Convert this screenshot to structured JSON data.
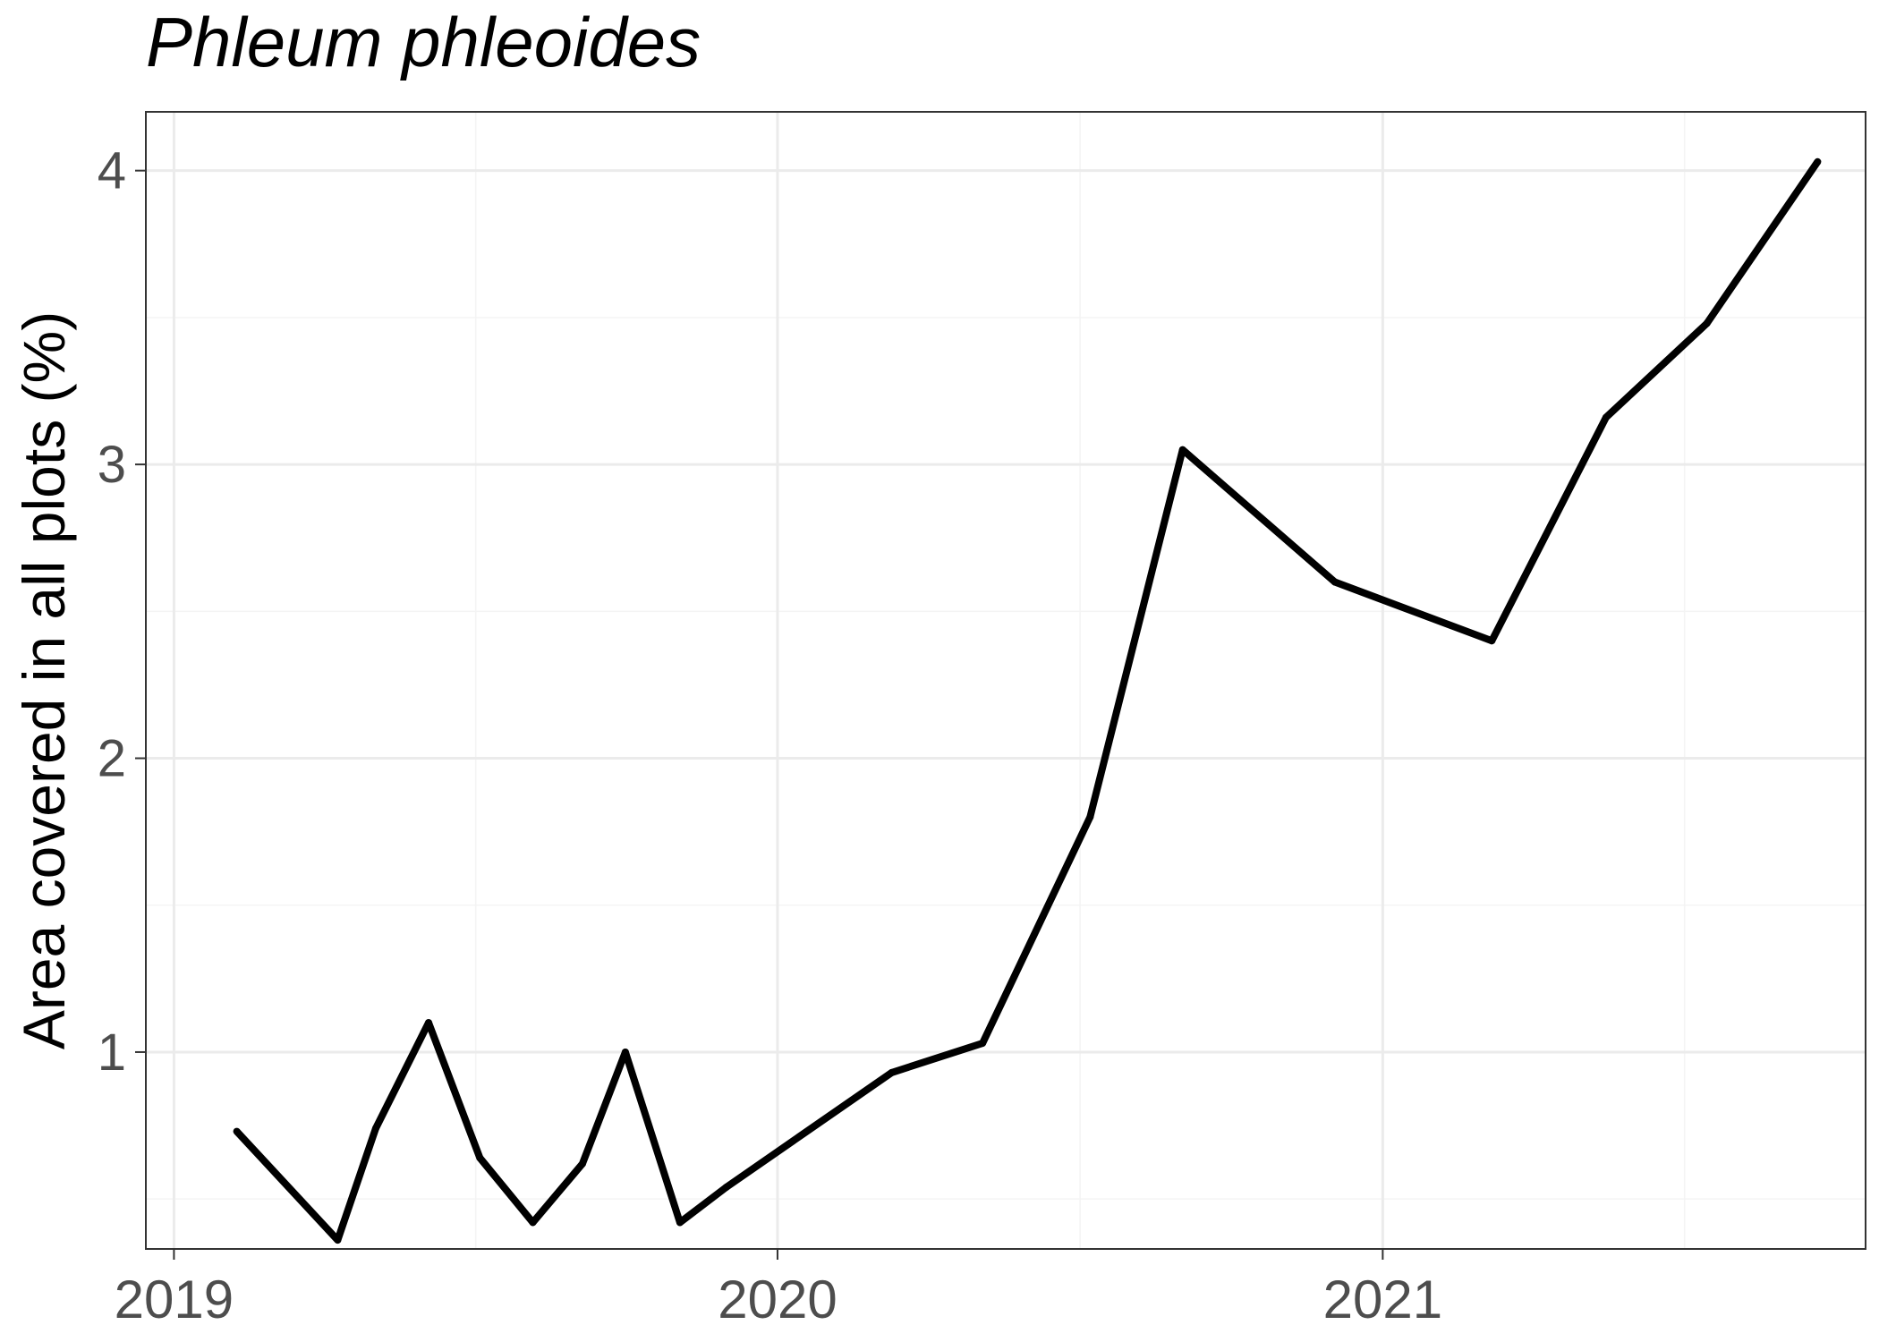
{
  "chart_data": {
    "type": "line",
    "title": "Phleum phleoides",
    "xlabel": "",
    "ylabel": "Area covered in all plots (%)",
    "x_tick_labels": [
      "2019",
      "2020",
      "2021"
    ],
    "y_tick_labels": [
      "1",
      "2",
      "3",
      "4"
    ],
    "xlim": [
      "2018-12-15",
      "2021-10-20"
    ],
    "ylim": [
      0.33,
      4.2
    ],
    "grid": true,
    "legend": "none",
    "series": [
      {
        "color": "#000000",
        "points": [
          {
            "x": "2019-02-08",
            "y": 0.73
          },
          {
            "x": "2019-04-10",
            "y": 0.36
          },
          {
            "x": "2019-05-03",
            "y": 0.74
          },
          {
            "x": "2019-06-04",
            "y": 1.1
          },
          {
            "x": "2019-07-05",
            "y": 0.64
          },
          {
            "x": "2019-08-06",
            "y": 0.42
          },
          {
            "x": "2019-09-05",
            "y": 0.62
          },
          {
            "x": "2019-10-01",
            "y": 1.0
          },
          {
            "x": "2019-11-03",
            "y": 0.42
          },
          {
            "x": "2019-12-01",
            "y": 0.54
          },
          {
            "x": "2020-03-10",
            "y": 0.93
          },
          {
            "x": "2020-05-04",
            "y": 1.03
          },
          {
            "x": "2020-07-08",
            "y": 1.8
          },
          {
            "x": "2020-09-02",
            "y": 3.05
          },
          {
            "x": "2020-12-03",
            "y": 2.6
          },
          {
            "x": "2021-03-08",
            "y": 2.4
          },
          {
            "x": "2021-05-16",
            "y": 3.16
          },
          {
            "x": "2021-07-16",
            "y": 3.48
          },
          {
            "x": "2021-09-21",
            "y": 4.03
          }
        ]
      }
    ]
  }
}
